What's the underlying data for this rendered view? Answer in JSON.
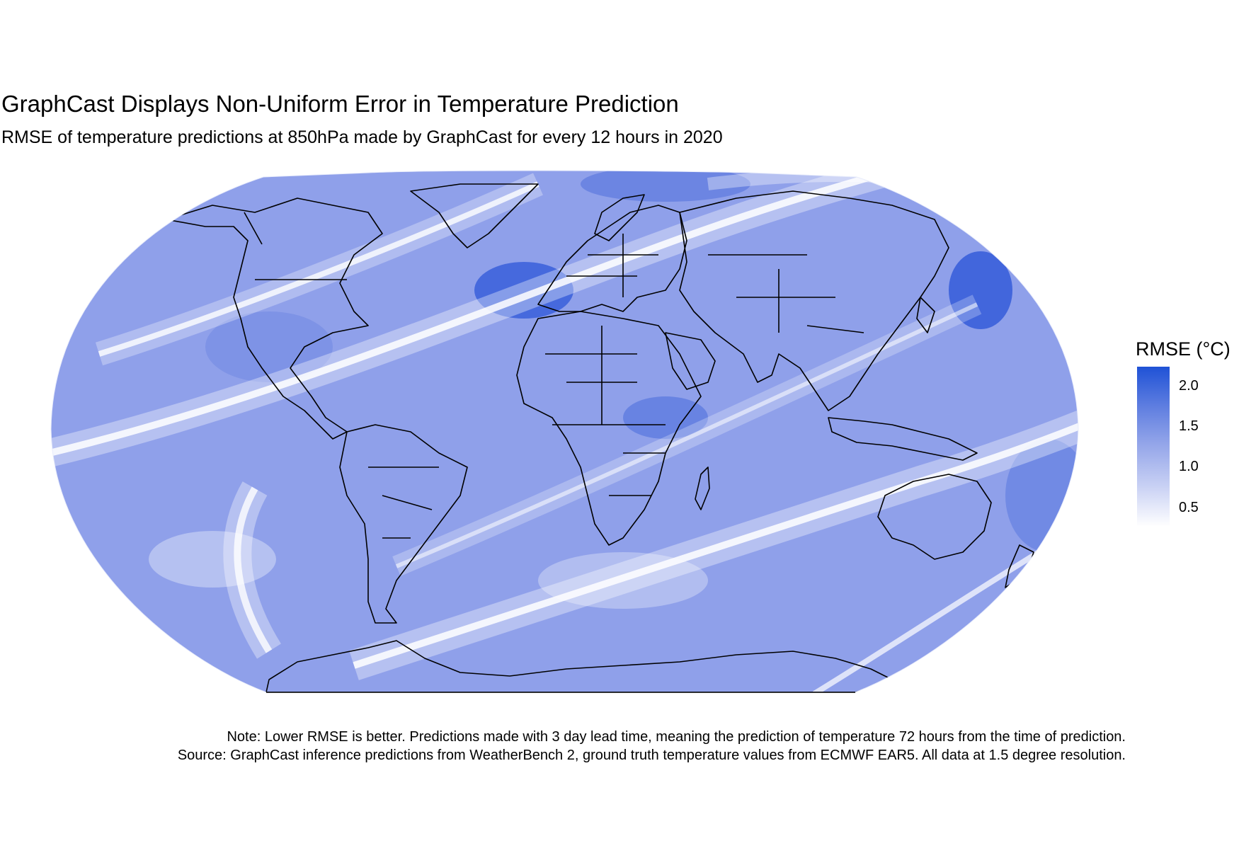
{
  "title": "GraphCast Displays Non-Uniform Error in Temperature Prediction",
  "subtitle": "RMSE of temperature predictions at 850hPa made by GraphCast for every 12 hours in 2020",
  "legend": {
    "title": "RMSE (°C)",
    "ticks": [
      "2.0",
      "1.5",
      "1.0",
      "0.5"
    ],
    "color_high": "#1f52d6",
    "color_low": "#ffffff",
    "range": [
      0.2,
      2.25
    ]
  },
  "caption": {
    "line1": "Note: Lower RMSE is better. Predictions made with 3 day lead time, meaning the prediction of temperature 72 hours from the time of prediction.",
    "line2": "Source: GraphCast inference predictions from WeatherBench 2, ground truth temperature values from ECMWF EAR5. All data at 1.5 degree resolution."
  },
  "map": {
    "projection": "Robinson",
    "fill_base": "#8c9ee8",
    "coastline_color": "#000000"
  }
}
